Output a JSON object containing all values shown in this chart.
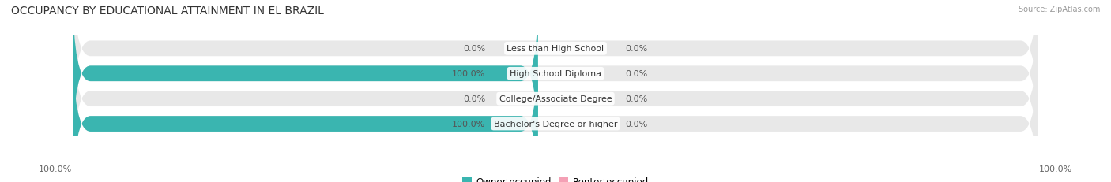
{
  "title": "OCCUPANCY BY EDUCATIONAL ATTAINMENT IN EL BRAZIL",
  "source": "Source: ZipAtlas.com",
  "categories": [
    "Less than High School",
    "High School Diploma",
    "College/Associate Degree",
    "Bachelor's Degree or higher"
  ],
  "owner_values": [
    0.0,
    100.0,
    0.0,
    100.0
  ],
  "renter_values": [
    0.0,
    0.0,
    0.0,
    0.0
  ],
  "owner_color": "#3ab5b0",
  "renter_color": "#f4a0b5",
  "bar_bg_color": "#e8e8e8",
  "title_fontsize": 10,
  "label_fontsize": 8,
  "legend_fontsize": 8.5,
  "axis_label_fontsize": 8,
  "background_color": "#ffffff",
  "fig_width": 14.06,
  "fig_height": 2.32,
  "left_axis_label": "100.0%",
  "right_axis_label": "100.0%"
}
